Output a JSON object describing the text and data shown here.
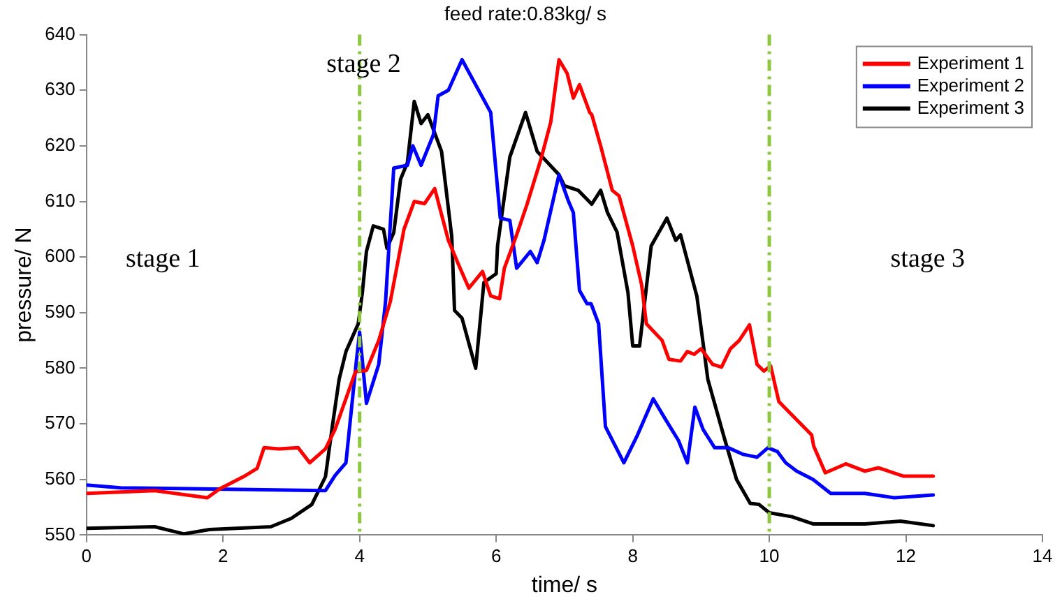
{
  "chart_data": {
    "type": "line",
    "title": "feed rate:0.83kg/ s",
    "xlabel": "time/ s",
    "ylabel": "pressure/ N",
    "xlim": [
      0,
      14
    ],
    "xticks": [
      0,
      2,
      4,
      6,
      8,
      10,
      12,
      14
    ],
    "ylim": [
      550,
      640
    ],
    "yticks": [
      550,
      560,
      570,
      580,
      590,
      600,
      610,
      620,
      630,
      640
    ],
    "grid": false,
    "legend": "top right",
    "marker": "none",
    "line_style": "solid",
    "ref_lines": [
      {
        "axis": "x",
        "value": 4,
        "color": "#8dc63f",
        "line_style": "dashdot"
      },
      {
        "axis": "x",
        "value": 10,
        "color": "#8dc63f",
        "line_style": "dashdot"
      }
    ],
    "annotations": [
      "stage 1",
      "stage 2",
      "stage 3"
    ],
    "series": [
      {
        "name": "Experiment 1",
        "color": "#ff0000",
        "x": [
          0,
          1,
          1.77,
          1.95,
          2.3,
          2.5,
          2.6,
          2.82,
          3.1,
          3.27,
          3.5,
          3.64,
          3.94,
          4.1,
          4.28,
          4.45,
          4.65,
          4.8,
          4.95,
          5.1,
          5.3,
          5.45,
          5.6,
          5.8,
          5.92,
          6.05,
          6.12,
          6.3,
          6.45,
          6.66,
          6.8,
          6.92,
          7.04,
          7.13,
          7.22,
          7.37,
          7.4,
          7.53,
          7.7,
          7.8,
          8,
          8.13,
          8.2,
          8.43,
          8.53,
          8.7,
          8.8,
          8.9,
          9,
          9.17,
          9.3,
          9.43,
          9.56,
          9.71,
          9.82,
          9.92,
          10.02,
          10.14,
          10.3,
          10.62,
          10.65,
          10.82,
          11.12,
          11.4,
          11.6,
          11.96,
          12.4
        ],
        "values": [
          557.5,
          558,
          556.7,
          558.3,
          560.5,
          562,
          565.7,
          565.5,
          565.7,
          563,
          565.5,
          569,
          579.4,
          579.6,
          585,
          592,
          605,
          610,
          609.6,
          612.3,
          603,
          598.6,
          594.4,
          597.4,
          593,
          592.5,
          598,
          604,
          609.4,
          617.8,
          624.3,
          635.5,
          633,
          628.6,
          631,
          626,
          625.6,
          620,
          612,
          611,
          602,
          595,
          588,
          585,
          581.6,
          581.3,
          583,
          582.5,
          583.5,
          580.7,
          580.2,
          583.5,
          585,
          587.8,
          580.7,
          579.5,
          580.4,
          574,
          572,
          568,
          566,
          561.2,
          562.8,
          561.5,
          562.1,
          560.6,
          560.6
        ]
      },
      {
        "name": "Experiment 2",
        "color": "#0000ff",
        "x": [
          0,
          0.5,
          3.5,
          3.64,
          3.8,
          3.95,
          4.0,
          4.1,
          4.28,
          4.38,
          4.5,
          4.7,
          4.78,
          4.9,
          5.08,
          5.15,
          5.3,
          5.5,
          5.92,
          6.06,
          6.2,
          6.3,
          6.5,
          6.6,
          6.7,
          6.92,
          7.06,
          7.13,
          7.22,
          7.33,
          7.39,
          7.5,
          7.6,
          7.87,
          8.07,
          8.3,
          8.47,
          8.67,
          8.8,
          8.91,
          9.03,
          9.2,
          9.4,
          9.62,
          9.82,
          9.98,
          10.12,
          10.24,
          10.4,
          10.64,
          10.9,
          11.4,
          11.83,
          12.4
        ],
        "values": [
          559,
          558.5,
          558,
          560.7,
          563,
          581,
          586.5,
          573.7,
          580.7,
          592,
          616,
          616.5,
          620,
          616.5,
          622,
          629,
          630,
          635.5,
          626,
          607,
          606.6,
          598,
          601,
          599,
          603,
          614.8,
          610,
          608,
          594,
          591.6,
          591.6,
          588,
          569.5,
          563,
          568,
          574.5,
          571,
          567,
          563,
          573,
          569,
          565.7,
          565.7,
          564.5,
          564,
          565.7,
          565,
          563,
          561.5,
          560,
          557.5,
          557.5,
          556.7,
          557.2
        ]
      },
      {
        "name": "Experiment 3",
        "color": "#000000",
        "x": [
          0,
          1,
          1.43,
          1.8,
          2.7,
          3,
          3.3,
          3.5,
          3.6,
          3.7,
          3.8,
          3.98,
          4.04,
          4.1,
          4.2,
          4.35,
          4.4,
          4.5,
          4.6,
          4.7,
          4.8,
          4.9,
          5,
          5.2,
          5.35,
          5.39,
          5.5,
          5.7,
          5.82,
          6,
          6.02,
          6.2,
          6.43,
          6.6,
          6.92,
          7,
          7.2,
          7.4,
          7.53,
          7.63,
          7.77,
          7.93,
          8,
          8.1,
          8.27,
          8.5,
          8.63,
          8.7,
          8.94,
          9.1,
          9.34,
          9.52,
          9.72,
          9.85,
          10,
          10.33,
          10.64,
          11.4,
          11.92,
          12.4
        ],
        "values": [
          551.2,
          551.5,
          550.2,
          551,
          551.5,
          553,
          555.5,
          560.5,
          569.5,
          578,
          583,
          588,
          593.6,
          601,
          605.6,
          605,
          601.6,
          604.4,
          614,
          617,
          628,
          624,
          625.6,
          619,
          603.6,
          590.4,
          589,
          580,
          595.4,
          597,
          602,
          618,
          626,
          619,
          614.8,
          612.8,
          612,
          609.5,
          612,
          608,
          604.5,
          593.6,
          584,
          584,
          602,
          607,
          603,
          604,
          592.9,
          578,
          567.5,
          560,
          555.7,
          555.5,
          554,
          553.3,
          552,
          552,
          552.5,
          551.7
        ]
      }
    ]
  }
}
